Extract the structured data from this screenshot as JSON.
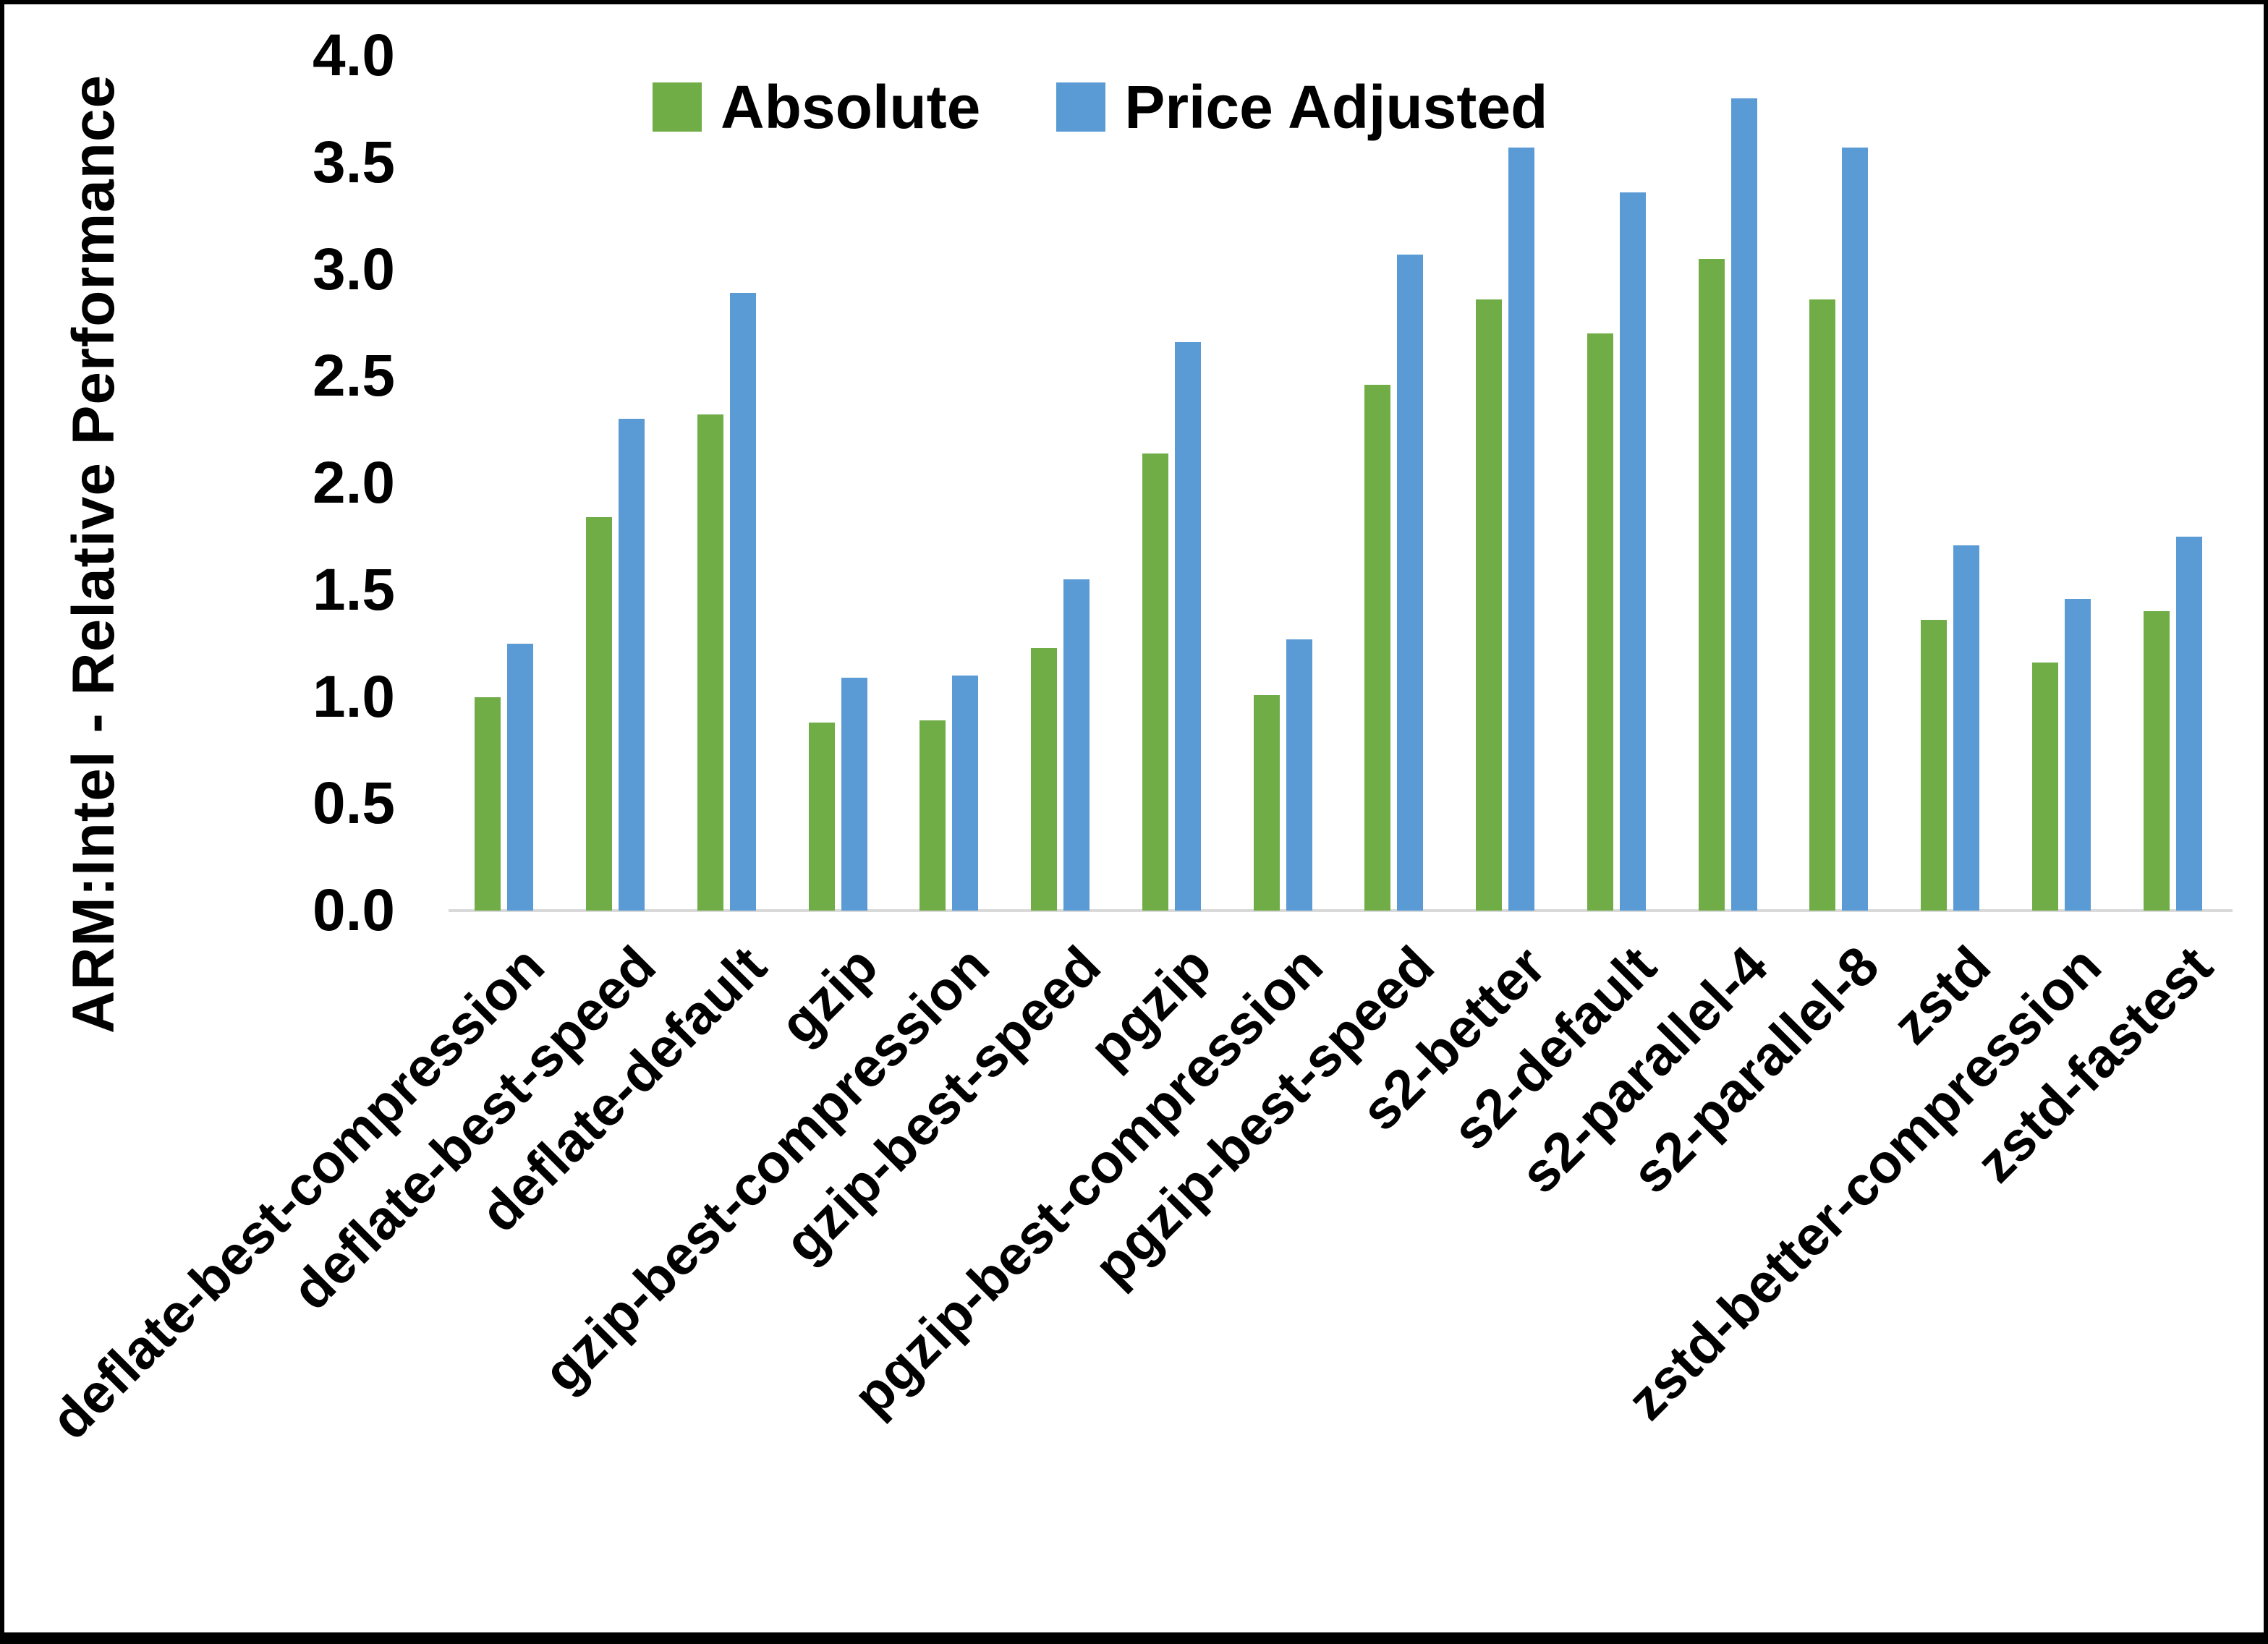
{
  "figure": {
    "background": "#ffffff",
    "border_color": "#000000",
    "axis_line_color": "#d9d9d9"
  },
  "y_axis": {
    "title": "ARM:Intel - Relative Performance",
    "tick_labels": [
      "0.0",
      "0.5",
      "1.0",
      "1.5",
      "2.0",
      "2.5",
      "3.0",
      "3.5",
      "4.0"
    ]
  },
  "legend": {
    "items": [
      {
        "label": "Absolute",
        "color": "#70AD47"
      },
      {
        "label": "Price Adjusted",
        "color": "#5B9BD5"
      }
    ]
  },
  "chart_data": {
    "type": "bar",
    "title": "",
    "xlabel": "",
    "ylabel": "ARM:Intel - Relative Performance",
    "ylim": [
      0,
      4.0
    ],
    "ytick_step": 0.5,
    "grid": false,
    "legend_position": "top",
    "categories": [
      "deflate-best-compression",
      "deflate-best-speed",
      "deflate-default",
      "gzip",
      "gzip-best-compression",
      "gzip-best-speed",
      "pgzip",
      "pgzip-best-compression",
      "pgzip-best-speed",
      "s2-better",
      "s2-default",
      "s2-parallel-4",
      "s2-parallel-8",
      "zstd",
      "zstd-better-compression",
      "zstd-fastest"
    ],
    "series": [
      {
        "name": "Absolute",
        "color": "#70AD47",
        "values": [
          1.0,
          1.84,
          2.32,
          0.88,
          0.89,
          1.23,
          2.14,
          1.01,
          2.46,
          2.86,
          2.7,
          3.05,
          2.86,
          1.36,
          1.16,
          1.4
        ]
      },
      {
        "name": "Price Adjusted",
        "color": "#5B9BD5",
        "values": [
          1.25,
          2.3,
          2.89,
          1.09,
          1.1,
          1.55,
          2.66,
          1.27,
          3.07,
          3.57,
          3.36,
          3.8,
          3.57,
          1.71,
          1.46,
          1.75
        ]
      }
    ]
  }
}
